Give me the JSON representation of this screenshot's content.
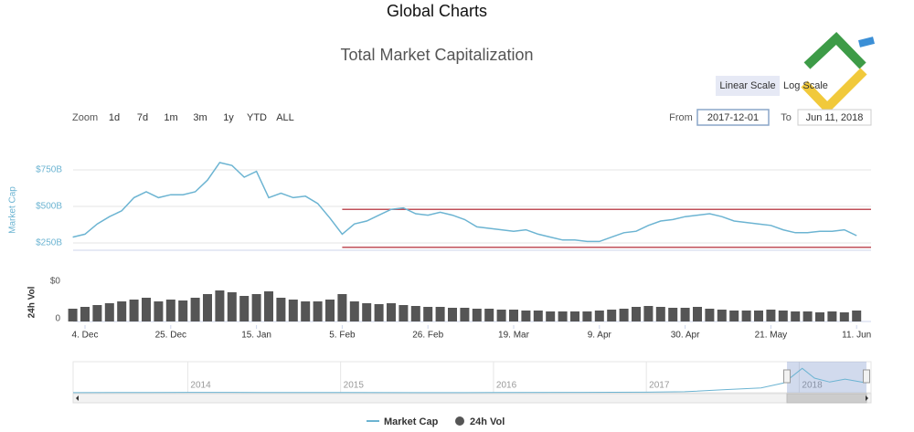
{
  "header": {
    "title": "Global Charts"
  },
  "controls": {
    "scale_buttons": [
      "Linear Scale",
      "Log Scale"
    ],
    "zoom_label": "Zoom",
    "zoom_buttons": [
      "1d",
      "7d",
      "1m",
      "3m",
      "1y",
      "YTD",
      "ALL"
    ],
    "from_label": "From",
    "from_value": "2017-12-01",
    "to_label": "To",
    "to_value": "Jun 11, 2018"
  },
  "chart_data": [
    {
      "type": "line",
      "title": "Total Market Capitalization",
      "ylabel": "Market Cap",
      "categories": [
        null,
        "4. Dec",
        null,
        null,
        null,
        null,
        null,
        null,
        "25. Dec",
        null,
        null,
        null,
        null,
        null,
        null,
        "15. Jan",
        null,
        null,
        null,
        null,
        null,
        null,
        "5. Feb",
        null,
        null,
        null,
        null,
        null,
        null,
        "26. Feb",
        null,
        null,
        null,
        null,
        null,
        null,
        "19. Mar",
        null,
        null,
        null,
        null,
        null,
        null,
        "9. Apr",
        null,
        null,
        null,
        null,
        null,
        null,
        "30. Apr",
        null,
        null,
        null,
        null,
        null,
        null,
        "21. May",
        null,
        null,
        null,
        null,
        null,
        null,
        "11. Jun"
      ],
      "series": [
        {
          "name": "Market Cap",
          "color": "#6cb4d2",
          "values": [
            290,
            310,
            380,
            430,
            470,
            560,
            600,
            560,
            580,
            580,
            600,
            680,
            800,
            780,
            700,
            740,
            560,
            590,
            560,
            570,
            520,
            420,
            310,
            380,
            400,
            440,
            480,
            490,
            450,
            440,
            460,
            440,
            410,
            360,
            350,
            340,
            330,
            340,
            310,
            290,
            270,
            270,
            260,
            260,
            290,
            320,
            330,
            370,
            400,
            410,
            430,
            440,
            450,
            430,
            400,
            390,
            380,
            370,
            340,
            320,
            320,
            330,
            330,
            340,
            300
          ]
        }
      ],
      "ylim": [
        200,
        850
      ],
      "yticks": [
        {
          "value": 250,
          "label": "$250B"
        },
        {
          "value": 500,
          "label": "$500B"
        },
        {
          "value": 750,
          "label": "$750B"
        }
      ],
      "grid": true,
      "reference_lines": [
        {
          "value": 480,
          "color": "#c0505a",
          "from": "5. Feb"
        },
        {
          "value": 220,
          "color": "#c0505a",
          "from": "5. Feb"
        }
      ]
    },
    {
      "type": "bar",
      "ylabel": "24h Vol",
      "top_label": "$0",
      "series": [
        {
          "name": "24h Vol",
          "color": "#555555",
          "values": [
            14,
            16,
            18,
            20,
            22,
            24,
            26,
            22,
            24,
            23,
            26,
            30,
            34,
            32,
            28,
            30,
            33,
            26,
            24,
            22,
            22,
            24,
            30,
            22,
            20,
            19,
            20,
            18,
            17,
            16,
            16,
            15,
            15,
            14,
            14,
            13,
            13,
            12,
            12,
            11,
            11,
            11,
            11,
            12,
            13,
            14,
            16,
            17,
            16,
            15,
            15,
            16,
            14,
            13,
            12,
            12,
            12,
            13,
            12,
            11,
            11,
            10,
            11,
            10,
            12
          ]
        }
      ],
      "ylim": [
        0,
        40
      ],
      "yticks": [
        {
          "value": 0,
          "label": "0"
        }
      ]
    },
    {
      "type": "navigator",
      "x": [
        2013.25,
        2013.75,
        2014,
        2014.5,
        2015,
        2015.5,
        2016,
        2016.5,
        2017,
        2017.25,
        2017.5,
        2017.75,
        2017.9,
        2018.02,
        2018.1,
        2018.2,
        2018.3,
        2018.44
      ],
      "series": [
        {
          "color": "#6cb4d2",
          "values": [
            2,
            8,
            10,
            8,
            5,
            4,
            6,
            10,
            17,
            30,
            90,
            150,
            300,
            750,
            450,
            330,
            420,
            300
          ]
        }
      ],
      "xlim": [
        2013.25,
        2018.47
      ],
      "ylim": [
        0,
        900
      ],
      "xticks": [
        2014,
        2015,
        2016,
        2017,
        2018
      ],
      "selection": [
        2017.92,
        2018.44
      ]
    }
  ]
}
